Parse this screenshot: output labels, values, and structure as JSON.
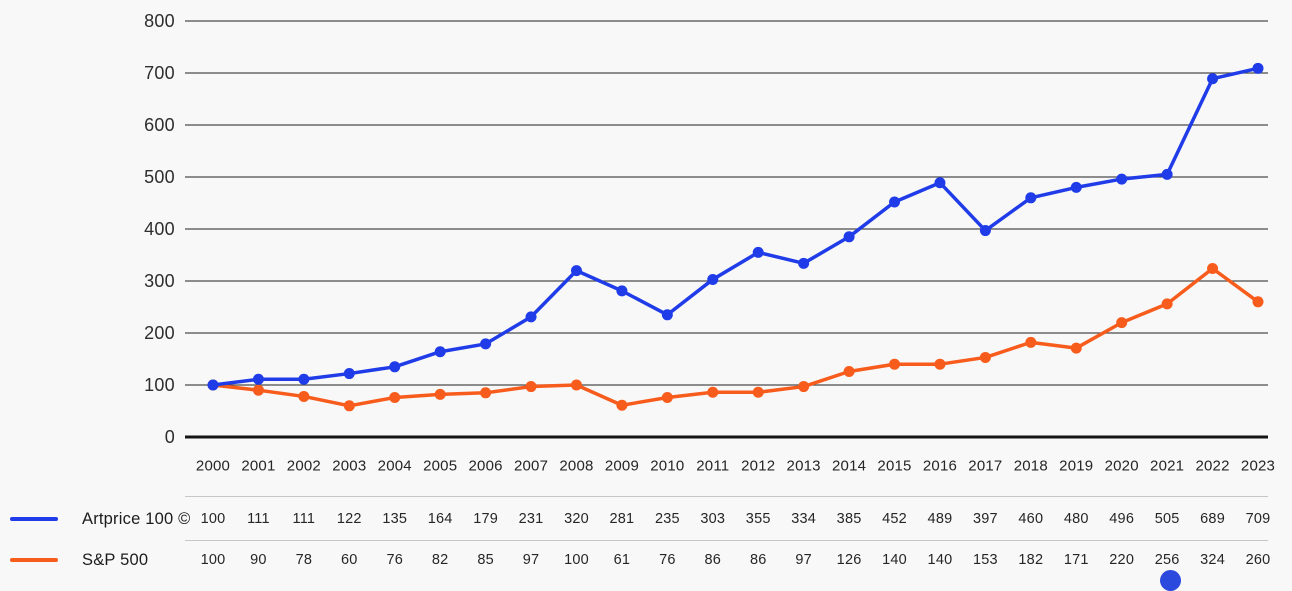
{
  "chart_data": {
    "type": "line",
    "title": "",
    "xlabel": "",
    "ylabel": "",
    "x": [
      "2000",
      "2001",
      "2002",
      "2003",
      "2004",
      "2005",
      "2006",
      "2007",
      "2008",
      "2009",
      "2010",
      "2011",
      "2012",
      "2013",
      "2014",
      "2015",
      "2016",
      "2017",
      "2018",
      "2019",
      "2020",
      "2021",
      "2022",
      "2023"
    ],
    "series": [
      {
        "name": "Artprice 100 ©",
        "color": "#1f3ce8",
        "values": [
          100,
          111,
          111,
          122,
          135,
          164,
          179,
          231,
          320,
          281,
          235,
          303,
          355,
          334,
          385,
          452,
          489,
          397,
          460,
          480,
          496,
          505,
          689,
          709
        ]
      },
      {
        "name": "S&P 500",
        "color": "#f85c1c",
        "values": [
          100,
          90,
          78,
          60,
          76,
          82,
          85,
          97,
          100,
          61,
          76,
          86,
          86,
          97,
          126,
          140,
          140,
          153,
          182,
          171,
          220,
          256,
          324,
          260
        ]
      }
    ],
    "ylim": [
      0,
      800
    ],
    "ytick_step": 100,
    "yticks": [
      0,
      100,
      200,
      300,
      400,
      500,
      600,
      700,
      800
    ],
    "grid": true,
    "legend_position": "bottom-left"
  },
  "legend": {
    "items": [
      {
        "label": "Artprice 100 ©",
        "color": "#1f3ce8"
      },
      {
        "label": "S&P 500",
        "color": "#f85c1c"
      }
    ]
  },
  "colors": {
    "background": "#f8f8f8",
    "gridline": "#4c4c4c",
    "axis": "#141414",
    "tick_text": "#2d2d2d",
    "divider": "#c6c6c6",
    "artprice_blue": "#1f3ce8",
    "sp500_orange": "#f85c1c",
    "floating_button_blue": "#2c49dd"
  }
}
